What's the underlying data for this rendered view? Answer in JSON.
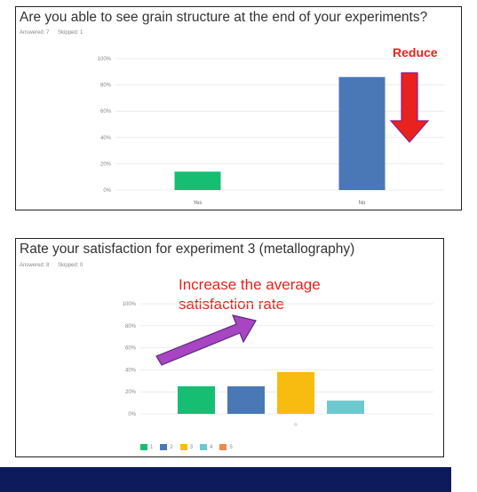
{
  "colors": {
    "green": "#16be72",
    "blue": "#4a78b6",
    "yellow": "#f7bc0f",
    "teal": "#6ec9cf",
    "orange": "#f3874f",
    "red": "#e8221c",
    "purple": "#a845c2",
    "navy": "#0d1a5c"
  },
  "chart_data": [
    {
      "type": "bar",
      "title": "Are you able to see grain structure at the end of your experiments?",
      "answered": "Answered: 7",
      "skipped": "Skipped: 1",
      "categories": [
        "Yes",
        "No"
      ],
      "values": [
        14,
        86
      ],
      "bar_colors": [
        "#16be72",
        "#4a78b6"
      ],
      "yticks": [
        "0%",
        "20%",
        "40%",
        "60%",
        "80%",
        "100%"
      ],
      "ylim": [
        0,
        100
      ],
      "annotation": "Reduce"
    },
    {
      "type": "bar",
      "title": "Rate your satisfaction for experiment 3 (metallography)",
      "answered": "Answered: 8",
      "skipped": "Skipped: 0",
      "categories": [
        "☆"
      ],
      "series": [
        {
          "name": "1",
          "values": [
            25
          ],
          "color": "#16be72"
        },
        {
          "name": "2",
          "values": [
            25
          ],
          "color": "#4a78b6"
        },
        {
          "name": "3",
          "values": [
            38
          ],
          "color": "#f7bc0f"
        },
        {
          "name": "4",
          "values": [
            12
          ],
          "color": "#6ec9cf"
        },
        {
          "name": "5",
          "values": [
            0
          ],
          "color": "#f3874f"
        }
      ],
      "yticks": [
        "0%",
        "20%",
        "40%",
        "60%",
        "80%",
        "100%"
      ],
      "ylim": [
        0,
        100
      ],
      "annotation_line1": "Increase the average",
      "annotation_line2": "satisfaction rate",
      "legend": [
        "1",
        "2",
        "3",
        "4",
        "5"
      ]
    }
  ]
}
